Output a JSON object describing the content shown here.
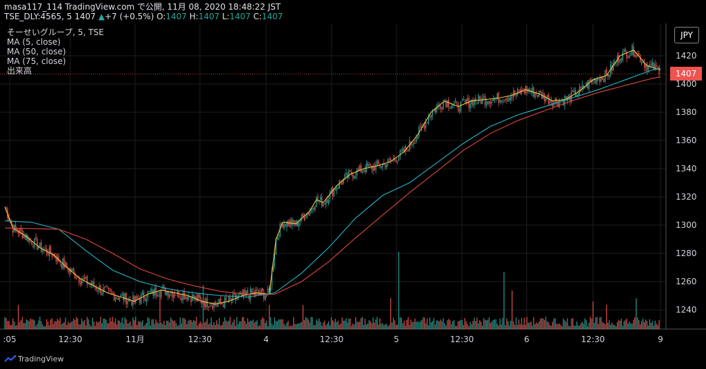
{
  "header": {
    "line1": "masa117_114 TradingView.com で公開, 11月 08, 2020 18:48:22 JST",
    "line2_prefix": "TSE_DLY:4565, 5 1407",
    "line2_change": "+7 (+0.5%)",
    "ohlc": {
      "o_label": "O:",
      "o": "1407",
      "h_label": "H:",
      "h": "1407",
      "l_label": "L:",
      "l": "1407",
      "c_label": "C:",
      "c": "1407"
    }
  },
  "legend": {
    "symbol": "そーせいグループ, 5, TSE",
    "ma5": "MA (5, close)",
    "ma50": "MA (50, close)",
    "ma75": "MA (75, close)",
    "volume": "出来高"
  },
  "currency_button": "JPY",
  "last_price_tag": "1407",
  "footer": {
    "brand": "TradingView"
  },
  "colors": {
    "up": "#26a69a",
    "down": "#ef5350",
    "ma5": "#f5c542",
    "ma50": "#26b7c9",
    "ma75": "#e0483d",
    "background": "#000000"
  },
  "chart_data": {
    "type": "candlestick",
    "y_axis": {
      "ticks": [
        1240,
        1260,
        1280,
        1300,
        1320,
        1340,
        1360,
        1380,
        1400,
        1420
      ],
      "range": [
        1228,
        1440
      ]
    },
    "x_axis": {
      "tick_labels": [
        ":05",
        "12:30",
        "11月",
        "12:30",
        "4",
        "12:30",
        "5",
        "12:30",
        "6",
        "12:30",
        "9"
      ]
    },
    "last_price": 1407,
    "series": [
      {
        "name": "MA (5, close)",
        "type": "line",
        "points": [
          [
            0,
            1313
          ],
          [
            6,
            1298
          ],
          [
            16,
            1292
          ],
          [
            26,
            1284
          ],
          [
            36,
            1279
          ],
          [
            46,
            1270
          ],
          [
            56,
            1262
          ],
          [
            66,
            1257
          ],
          [
            76,
            1252
          ],
          [
            86,
            1249
          ],
          [
            96,
            1246
          ],
          [
            106,
            1251
          ],
          [
            116,
            1254
          ],
          [
            126,
            1252
          ],
          [
            136,
            1250
          ],
          [
            146,
            1246
          ],
          [
            156,
            1244
          ],
          [
            166,
            1246
          ],
          [
            176,
            1250
          ],
          [
            186,
            1252
          ],
          [
            196,
            1251
          ],
          [
            201,
            1290
          ],
          [
            206,
            1302
          ],
          [
            216,
            1301
          ],
          [
            226,
            1310
          ],
          [
            231,
            1318
          ],
          [
            236,
            1316
          ],
          [
            246,
            1328
          ],
          [
            256,
            1336
          ],
          [
            266,
            1340
          ],
          [
            276,
            1342
          ],
          [
            286,
            1345
          ],
          [
            296,
            1352
          ],
          [
            306,
            1364
          ],
          [
            316,
            1380
          ],
          [
            326,
            1388
          ],
          [
            336,
            1384
          ],
          [
            346,
            1388
          ],
          [
            356,
            1389
          ],
          [
            366,
            1390
          ],
          [
            376,
            1392
          ],
          [
            386,
            1396
          ],
          [
            396,
            1393
          ],
          [
            406,
            1388
          ],
          [
            416,
            1389
          ],
          [
            426,
            1395
          ],
          [
            436,
            1403
          ],
          [
            446,
            1406
          ],
          [
            456,
            1420
          ],
          [
            466,
            1424
          ],
          [
            476,
            1413
          ],
          [
            486,
            1410
          ]
        ]
      },
      {
        "name": "MA (50, close)",
        "type": "line",
        "points": [
          [
            0,
            1303
          ],
          [
            20,
            1302
          ],
          [
            40,
            1297
          ],
          [
            60,
            1282
          ],
          [
            80,
            1268
          ],
          [
            100,
            1260
          ],
          [
            120,
            1255
          ],
          [
            140,
            1252
          ],
          [
            160,
            1250
          ],
          [
            180,
            1249
          ],
          [
            200,
            1252
          ],
          [
            220,
            1266
          ],
          [
            240,
            1284
          ],
          [
            260,
            1305
          ],
          [
            280,
            1321
          ],
          [
            300,
            1330
          ],
          [
            320,
            1344
          ],
          [
            340,
            1358
          ],
          [
            360,
            1370
          ],
          [
            380,
            1378
          ],
          [
            400,
            1384
          ],
          [
            420,
            1390
          ],
          [
            440,
            1396
          ],
          [
            460,
            1403
          ],
          [
            480,
            1410
          ],
          [
            486,
            1411
          ]
        ]
      },
      {
        "name": "MA (75, close)",
        "type": "line",
        "points": [
          [
            0,
            1298
          ],
          [
            40,
            1297
          ],
          [
            60,
            1290
          ],
          [
            80,
            1280
          ],
          [
            100,
            1269
          ],
          [
            120,
            1262
          ],
          [
            140,
            1257
          ],
          [
            160,
            1253
          ],
          [
            180,
            1251
          ],
          [
            200,
            1251
          ],
          [
            220,
            1260
          ],
          [
            240,
            1274
          ],
          [
            260,
            1291
          ],
          [
            280,
            1307
          ],
          [
            300,
            1323
          ],
          [
            320,
            1338
          ],
          [
            340,
            1353
          ],
          [
            360,
            1365
          ],
          [
            380,
            1374
          ],
          [
            400,
            1381
          ],
          [
            420,
            1388
          ],
          [
            440,
            1394
          ],
          [
            460,
            1399
          ],
          [
            480,
            1404
          ],
          [
            486,
            1405
          ]
        ]
      }
    ],
    "volume": {
      "description": "volume histogram bars (up=green, down=red)",
      "spikes": [
        [
          10,
          22
        ],
        [
          115,
          35
        ],
        [
          147,
          40
        ],
        [
          196,
          22
        ],
        [
          221,
          22
        ],
        [
          286,
          28
        ],
        [
          292,
          70
        ],
        [
          370,
          52
        ],
        [
          376,
          35
        ],
        [
          436,
          25
        ],
        [
          446,
          22
        ],
        [
          468,
          28
        ]
      ]
    }
  }
}
